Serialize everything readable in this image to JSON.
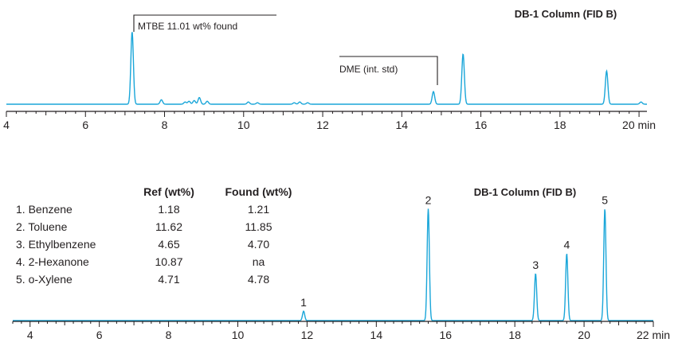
{
  "chart_data": [
    {
      "type": "line",
      "title": "DB-1 Column (FID B)",
      "xlabel": "min",
      "xlim": [
        4,
        20.2
      ],
      "ylim": [
        0,
        100
      ],
      "tick_labels": [
        "4",
        "6",
        "8",
        "10",
        "12",
        "14",
        "16",
        "18",
        "20 min"
      ],
      "ticks": [
        4,
        6,
        8,
        10,
        12,
        14,
        16,
        18,
        20
      ],
      "peaks": [
        {
          "x": 7.18,
          "y": 98
        },
        {
          "x": 7.92,
          "y": 6
        },
        {
          "x": 8.52,
          "y": 3
        },
        {
          "x": 8.62,
          "y": 4
        },
        {
          "x": 8.75,
          "y": 5
        },
        {
          "x": 8.88,
          "y": 9
        },
        {
          "x": 9.08,
          "y": 4
        },
        {
          "x": 10.12,
          "y": 3
        },
        {
          "x": 10.35,
          "y": 2
        },
        {
          "x": 11.28,
          "y": 2
        },
        {
          "x": 11.42,
          "y": 3
        },
        {
          "x": 11.62,
          "y": 2
        },
        {
          "x": 14.8,
          "y": 17
        },
        {
          "x": 15.55,
          "y": 68
        },
        {
          "x": 19.18,
          "y": 45
        },
        {
          "x": 20.05,
          "y": 3
        }
      ],
      "annotations": [
        {
          "text": "MTBE 11.01 wt% found",
          "x": 7.18
        },
        {
          "text": "DME (int. std)",
          "x": 14.8
        }
      ]
    },
    {
      "type": "line",
      "title": "DB-1 Column (FID B)",
      "xlabel": "min",
      "xlim": [
        3.5,
        22
      ],
      "ylim": [
        0,
        100
      ],
      "tick_labels": [
        "4",
        "6",
        "8",
        "10",
        "12",
        "14",
        "16",
        "18",
        "20",
        "22 min"
      ],
      "ticks": [
        4,
        6,
        8,
        10,
        12,
        14,
        16,
        18,
        20,
        22
      ],
      "peaks": [
        {
          "x": 11.9,
          "y": 8,
          "label": "1"
        },
        {
          "x": 15.5,
          "y": 95,
          "label": "2"
        },
        {
          "x": 18.6,
          "y": 40,
          "label": "3"
        },
        {
          "x": 19.5,
          "y": 57,
          "label": "4"
        },
        {
          "x": 20.6,
          "y": 95,
          "label": "5"
        }
      ],
      "table": {
        "headers": [
          "",
          "Ref (wt%)",
          "Found (wt%)"
        ],
        "rows": [
          [
            "1. Benzene",
            "1.18",
            "1.21"
          ],
          [
            "2. Toluene",
            "11.62",
            "11.85"
          ],
          [
            "3. Ethylbenzene",
            "4.65",
            "4.70"
          ],
          [
            "4. 2-Hexanone",
            "10.87",
            "na"
          ],
          [
            "5. o-Xylene",
            "4.71",
            "4.78"
          ]
        ]
      }
    }
  ],
  "colors": {
    "trace": "#1aa6d9",
    "axis": "#231f20"
  }
}
